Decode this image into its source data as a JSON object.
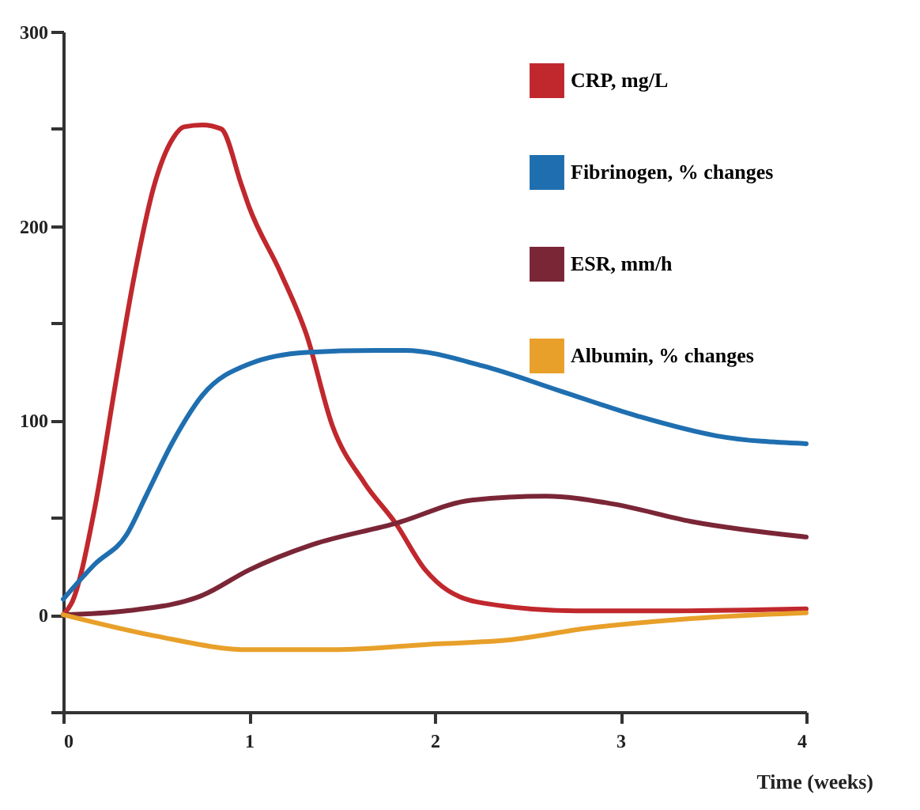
{
  "chart_data": {
    "type": "line",
    "xlabel": "Time (weeks)",
    "legend": "top right",
    "grid": false,
    "xlim": [
      0,
      4
    ],
    "xticks": [
      0,
      1,
      2,
      3,
      4
    ],
    "ylim": [
      -50,
      300
    ],
    "yticks": [
      {
        "value": -50,
        "label": null
      },
      0,
      {
        "value": 50,
        "label": null
      },
      100,
      {
        "value": 150,
        "label": null
      },
      200,
      {
        "value": 250,
        "label": null
      },
      300
    ],
    "series": [
      {
        "name": "CRP, mg/L",
        "color": "#c0282d",
        "x": [
          0,
          0.05,
          0.17,
          0.28,
          0.38,
          0.49,
          0.59,
          0.65,
          0.75,
          0.85,
          0.96,
          1.0,
          1.17,
          1.31,
          1.45,
          1.62,
          1.79,
          1.95,
          2.01,
          2.26,
          2.76,
          3.3,
          4
        ],
        "values": [
          0,
          7,
          55,
          118,
          173,
          221,
          245,
          251,
          252,
          250,
          221,
          210,
          176,
          144,
          97,
          68,
          47,
          23,
          17,
          6,
          2,
          2,
          3
        ]
      },
      {
        "name": "Fibrinogen, % changes",
        "color": "#1f6fb0",
        "x": [
          0,
          0.17,
          0.34,
          0.45,
          0.59,
          0.75,
          1.0,
          1.31,
          1.68,
          1.84,
          2.26,
          2.68,
          3.1,
          3.52,
          4
        ],
        "values": [
          8,
          26,
          41,
          62,
          89,
          113,
          129,
          135,
          136,
          136,
          128,
          115,
          102,
          92,
          88
        ]
      },
      {
        "name": "ESR, mm/h",
        "color": "#7a2637",
        "x": [
          0,
          0.34,
          0.75,
          1.0,
          1.34,
          1.79,
          2.2,
          2.6,
          2.96,
          3.38,
          4
        ],
        "values": [
          0,
          2,
          10,
          23,
          36,
          47,
          59,
          61,
          57,
          48,
          40
        ]
      },
      {
        "name": "Albumin, % changes",
        "color": "#e8a02a",
        "x": [
          0,
          0.5,
          1.0,
          1.45,
          2.01,
          2.4,
          2.82,
          3.38,
          4
        ],
        "values": [
          0,
          -11,
          -18,
          -18,
          -15,
          -13,
          -7,
          -2,
          1
        ]
      }
    ]
  }
}
